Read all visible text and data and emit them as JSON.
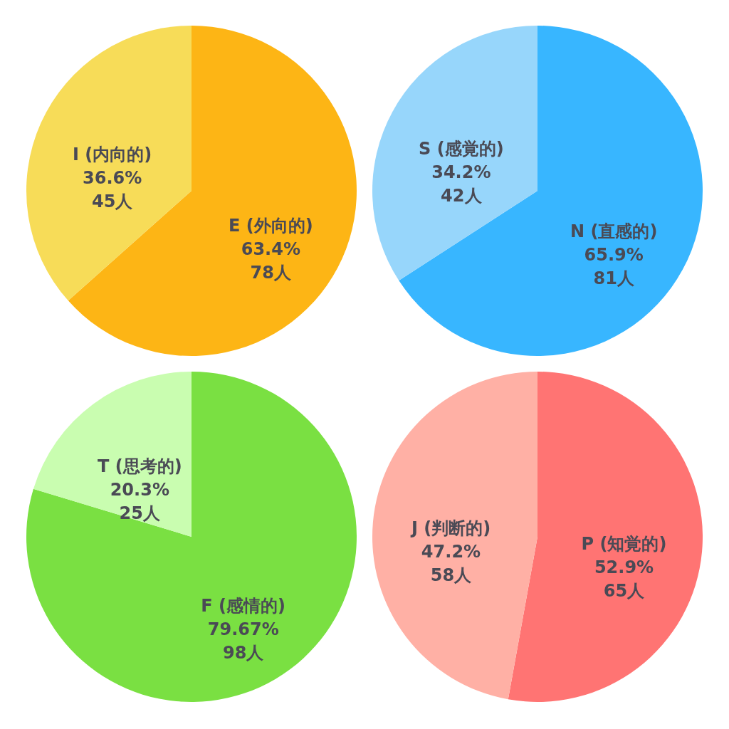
{
  "chart_data": [
    {
      "type": "pie",
      "categories": [
        "E (外向的)",
        "I (内向的)"
      ],
      "values": [
        78,
        45
      ],
      "colors": [
        "#fdb515",
        "#f7dc58"
      ],
      "value_labels": [
        "63.4%\n78人",
        "36.6%\n45人"
      ]
    },
    {
      "type": "pie",
      "categories": [
        "N (直感的)",
        "S (感覚的)"
      ],
      "values": [
        81,
        42
      ],
      "colors": [
        "#38b6ff",
        "#97d6fb"
      ],
      "value_labels": [
        "65.9%\n81人",
        "34.2%\n42人"
      ]
    },
    {
      "type": "pie",
      "categories": [
        "F (感情的)",
        "T (思考的)"
      ],
      "values": [
        98,
        25
      ],
      "colors": [
        "#7ae042",
        "#c9fdb0"
      ],
      "value_labels": [
        "79.67%\n98人",
        "20.3%\n25人"
      ]
    },
    {
      "type": "pie",
      "categories": [
        "P (知覚的)",
        "J (判断的)"
      ],
      "values": [
        65,
        58
      ],
      "colors": [
        "#ff7473",
        "#ffb0a5"
      ],
      "value_labels": [
        "52.9%\n65人",
        "47.2%\n58人"
      ]
    }
  ]
}
